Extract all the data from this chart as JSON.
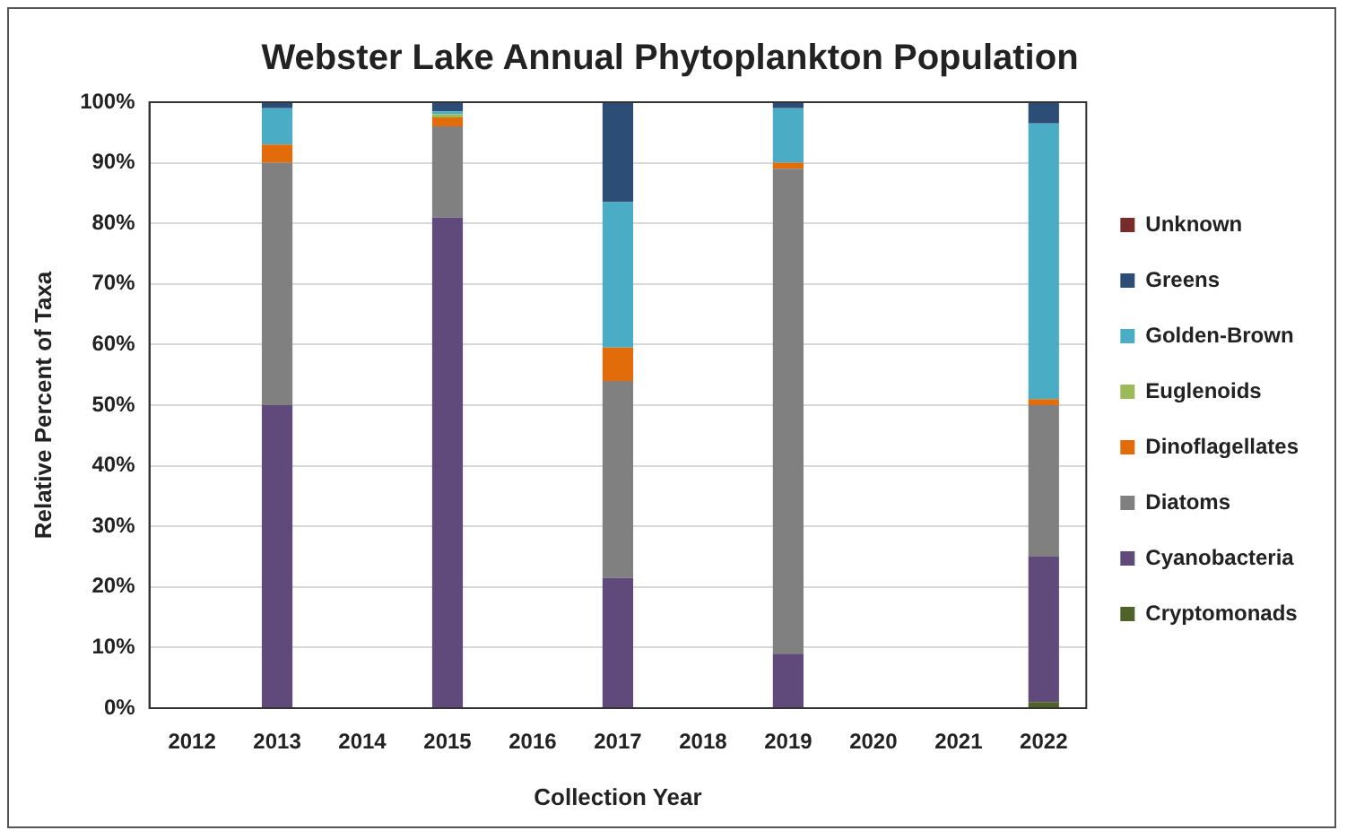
{
  "chart_data": {
    "type": "bar",
    "title": "Webster Lake Annual Phytoplankton Population",
    "xlabel": "Collection Year",
    "ylabel": "Relative Percent of Taxa",
    "stacked": true,
    "categories": [
      "2012",
      "2013",
      "2014",
      "2015",
      "2016",
      "2017",
      "2018",
      "2019",
      "2020",
      "2021",
      "2022"
    ],
    "ylim": [
      0,
      100
    ],
    "yticks": [
      {
        "value": 0,
        "label": "0%"
      },
      {
        "value": 10,
        "label": "10%"
      },
      {
        "value": 20,
        "label": "20%"
      },
      {
        "value": 30,
        "label": "30%"
      },
      {
        "value": 40,
        "label": "40%"
      },
      {
        "value": 50,
        "label": "50%"
      },
      {
        "value": 60,
        "label": "60%"
      },
      {
        "value": 70,
        "label": "70%"
      },
      {
        "value": 80,
        "label": "80%"
      },
      {
        "value": 90,
        "label": "90%"
      },
      {
        "value": 100,
        "label": "100%"
      }
    ],
    "grid": "y",
    "legend": "right",
    "series": [
      {
        "name": "Cryptomonads",
        "color": "#4f6228",
        "values": [
          null,
          0,
          null,
          0,
          null,
          0,
          null,
          0,
          null,
          null,
          1
        ]
      },
      {
        "name": "Cyanobacteria",
        "color": "#604a7b",
        "values": [
          null,
          50,
          null,
          81,
          null,
          21.5,
          null,
          9,
          null,
          null,
          24
        ]
      },
      {
        "name": "Diatoms",
        "color": "#808080",
        "values": [
          null,
          40,
          null,
          15,
          null,
          32.5,
          null,
          80,
          null,
          null,
          25
        ]
      },
      {
        "name": "Dinoflagellates",
        "color": "#e36c0a",
        "values": [
          null,
          3,
          null,
          1.5,
          null,
          5.5,
          null,
          1,
          null,
          null,
          1
        ]
      },
      {
        "name": "Euglenoids",
        "color": "#9bbb59",
        "values": [
          null,
          0,
          null,
          0.5,
          null,
          0,
          null,
          0,
          null,
          null,
          0
        ]
      },
      {
        "name": "Golden-Brown",
        "color": "#4bacc6",
        "values": [
          null,
          6,
          null,
          0.5,
          null,
          24,
          null,
          9,
          null,
          null,
          45.5
        ]
      },
      {
        "name": "Greens",
        "color": "#2c4d75",
        "values": [
          null,
          1,
          null,
          1.5,
          null,
          16.5,
          null,
          1,
          null,
          null,
          3.5
        ]
      },
      {
        "name": "Unknown",
        "color": "#772c2a",
        "values": [
          null,
          0,
          null,
          0,
          null,
          0,
          null,
          0,
          null,
          null,
          0
        ]
      }
    ]
  }
}
